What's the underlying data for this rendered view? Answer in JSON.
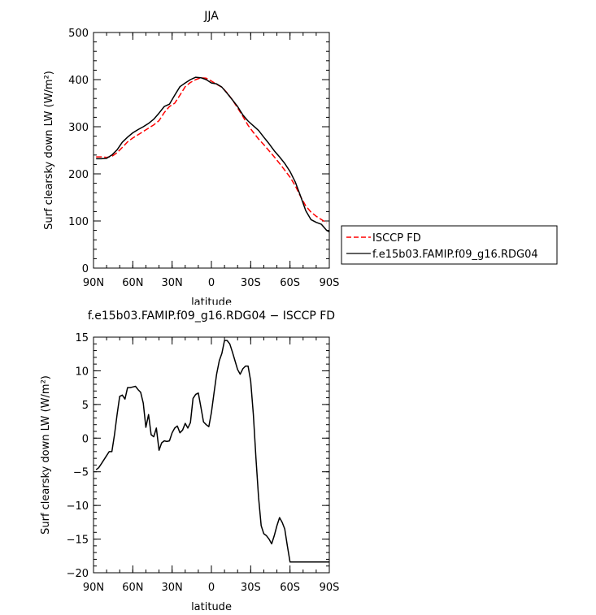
{
  "chart_data": [
    {
      "type": "line",
      "title": "JJA",
      "xlabel": "latitude",
      "ylabel": "Surf clearsky down LW (W/m²)",
      "xlim": [
        90,
        -90
      ],
      "ylim": [
        0,
        500
      ],
      "xticks": [
        90,
        60,
        30,
        0,
        -30,
        -60,
        -90
      ],
      "xtick_labels": [
        "90N",
        "60N",
        "30N",
        "0",
        "30S",
        "60S",
        "90S"
      ],
      "yticks": [
        0,
        100,
        200,
        300,
        400,
        500
      ],
      "ytick_labels": [
        "0",
        "100",
        "200",
        "300",
        "400",
        "500"
      ],
      "legend_position": "right",
      "series": [
        {
          "name": "ISCCP FD",
          "color": "#ff0000",
          "dash": "dashed",
          "x": [
            88,
            84,
            80,
            76,
            72,
            68,
            64,
            60,
            56,
            52,
            48,
            44,
            40,
            36,
            32,
            28,
            24,
            20,
            16,
            12,
            8,
            4,
            0,
            -4,
            -8,
            -12,
            -16,
            -20,
            -24,
            -28,
            -32,
            -36,
            -40,
            -44,
            -48,
            -52,
            -56,
            -60,
            -64,
            -68,
            -72,
            -76,
            -80,
            -84,
            -88
          ],
          "y": [
            236,
            236,
            235,
            237,
            245,
            256,
            268,
            276,
            283,
            290,
            297,
            304,
            313,
            330,
            343,
            350,
            367,
            385,
            394,
            400,
            404,
            403,
            397,
            390,
            384,
            372,
            357,
            340,
            322,
            303,
            288,
            274,
            262,
            249,
            236,
            222,
            208,
            193,
            175,
            152,
            132,
            119,
            110,
            103,
            96
          ]
        },
        {
          "name": "f.e15b03.FAMIP.f09_g16.RDG04",
          "color": "#000000",
          "dash": "solid",
          "x": [
            88,
            84,
            80,
            76,
            72,
            68,
            64,
            60,
            56,
            52,
            48,
            44,
            40,
            36,
            32,
            28,
            24,
            20,
            16,
            12,
            8,
            4,
            0,
            -4,
            -8,
            -12,
            -16,
            -20,
            -24,
            -28,
            -32,
            -36,
            -40,
            -44,
            -48,
            -52,
            -56,
            -60,
            -64,
            -68,
            -72,
            -76,
            -80,
            -84,
            -88,
            -90
          ],
          "y": [
            232,
            232,
            233,
            240,
            251,
            267,
            278,
            287,
            294,
            300,
            307,
            316,
            329,
            343,
            348,
            367,
            385,
            393,
            400,
            405,
            404,
            400,
            393,
            391,
            384,
            371,
            357,
            343,
            325,
            312,
            302,
            292,
            278,
            264,
            249,
            236,
            222,
            205,
            183,
            153,
            122,
            103,
            97,
            93,
            80,
            77
          ]
        }
      ]
    },
    {
      "type": "line",
      "title": "f.e15b03.FAMIP.f09_g16.RDG04 − ISCCP FD",
      "xlabel": "latitude",
      "ylabel": "Surf clearsky down LW (W/m²)",
      "xlim": [
        90,
        -90
      ],
      "ylim": [
        -20,
        15
      ],
      "xticks": [
        90,
        60,
        30,
        0,
        -30,
        -60,
        -90
      ],
      "xtick_labels": [
        "90N",
        "60N",
        "30N",
        "0",
        "30S",
        "60S",
        "90S"
      ],
      "yticks": [
        15,
        10,
        5,
        0,
        -5,
        -10,
        -15,
        -20
      ],
      "ytick_labels": [
        "15",
        "10",
        "5",
        "0",
        "−5",
        "−10",
        "−15",
        "−20"
      ],
      "series": [
        {
          "color": "#000000",
          "dash": "solid",
          "x": [
            88,
            86,
            84,
            82,
            80,
            78,
            76,
            74,
            72,
            70,
            68,
            66,
            64,
            62,
            60,
            58,
            56,
            54,
            52,
            50,
            48,
            46,
            44,
            42,
            40,
            38,
            36,
            34,
            32,
            30,
            28,
            26,
            24,
            22,
            20,
            18,
            16,
            14,
            12,
            10,
            8,
            6,
            4,
            2,
            0,
            -2,
            -4,
            -6,
            -8,
            -10,
            -12,
            -14,
            -16,
            -18,
            -20,
            -22,
            -24,
            -26,
            -28,
            -30,
            -32,
            -34,
            -36,
            -38,
            -40,
            -42,
            -44,
            -46,
            -48,
            -50,
            -52,
            -54,
            -56,
            -58,
            -60,
            -62,
            -64,
            -66,
            -68,
            -70,
            -72,
            -74,
            -76,
            -78,
            -80,
            -82,
            -84,
            -86,
            -88,
            -90
          ],
          "y": [
            -4.7,
            -4.4,
            -3.8,
            -3.2,
            -2.6,
            -2.0,
            -2.0,
            0.5,
            3.5,
            6.2,
            6.4,
            5.8,
            7.5,
            7.5,
            7.6,
            7.7,
            7.2,
            6.8,
            5.2,
            1.6,
            3.5,
            0.5,
            0.2,
            1.5,
            -1.8,
            -0.7,
            -0.4,
            -0.5,
            -0.4,
            0.8,
            1.5,
            1.8,
            0.8,
            1.2,
            2.2,
            1.5,
            2.3,
            5.9,
            6.5,
            6.7,
            4.6,
            2.4,
            2.0,
            1.7,
            3.8,
            6.7,
            9.5,
            11.5,
            12.6,
            14.5,
            14.5,
            14.0,
            12.8,
            11.5,
            10.2,
            9.5,
            10.3,
            10.7,
            10.7,
            8.5,
            3.5,
            -3.0,
            -8.8,
            -13.0,
            -14.2,
            -14.5,
            -15.0,
            -15.7,
            -14.5,
            -13.0,
            -11.8,
            -12.5,
            -13.5,
            -16.0,
            -18.4,
            -18.4,
            -18.4,
            -18.4,
            -18.4,
            -18.4,
            -18.4,
            -18.4,
            -18.4,
            -18.4,
            -18.4,
            -18.4,
            -18.4,
            -18.4,
            -18.4,
            -18.4
          ]
        }
      ]
    }
  ]
}
